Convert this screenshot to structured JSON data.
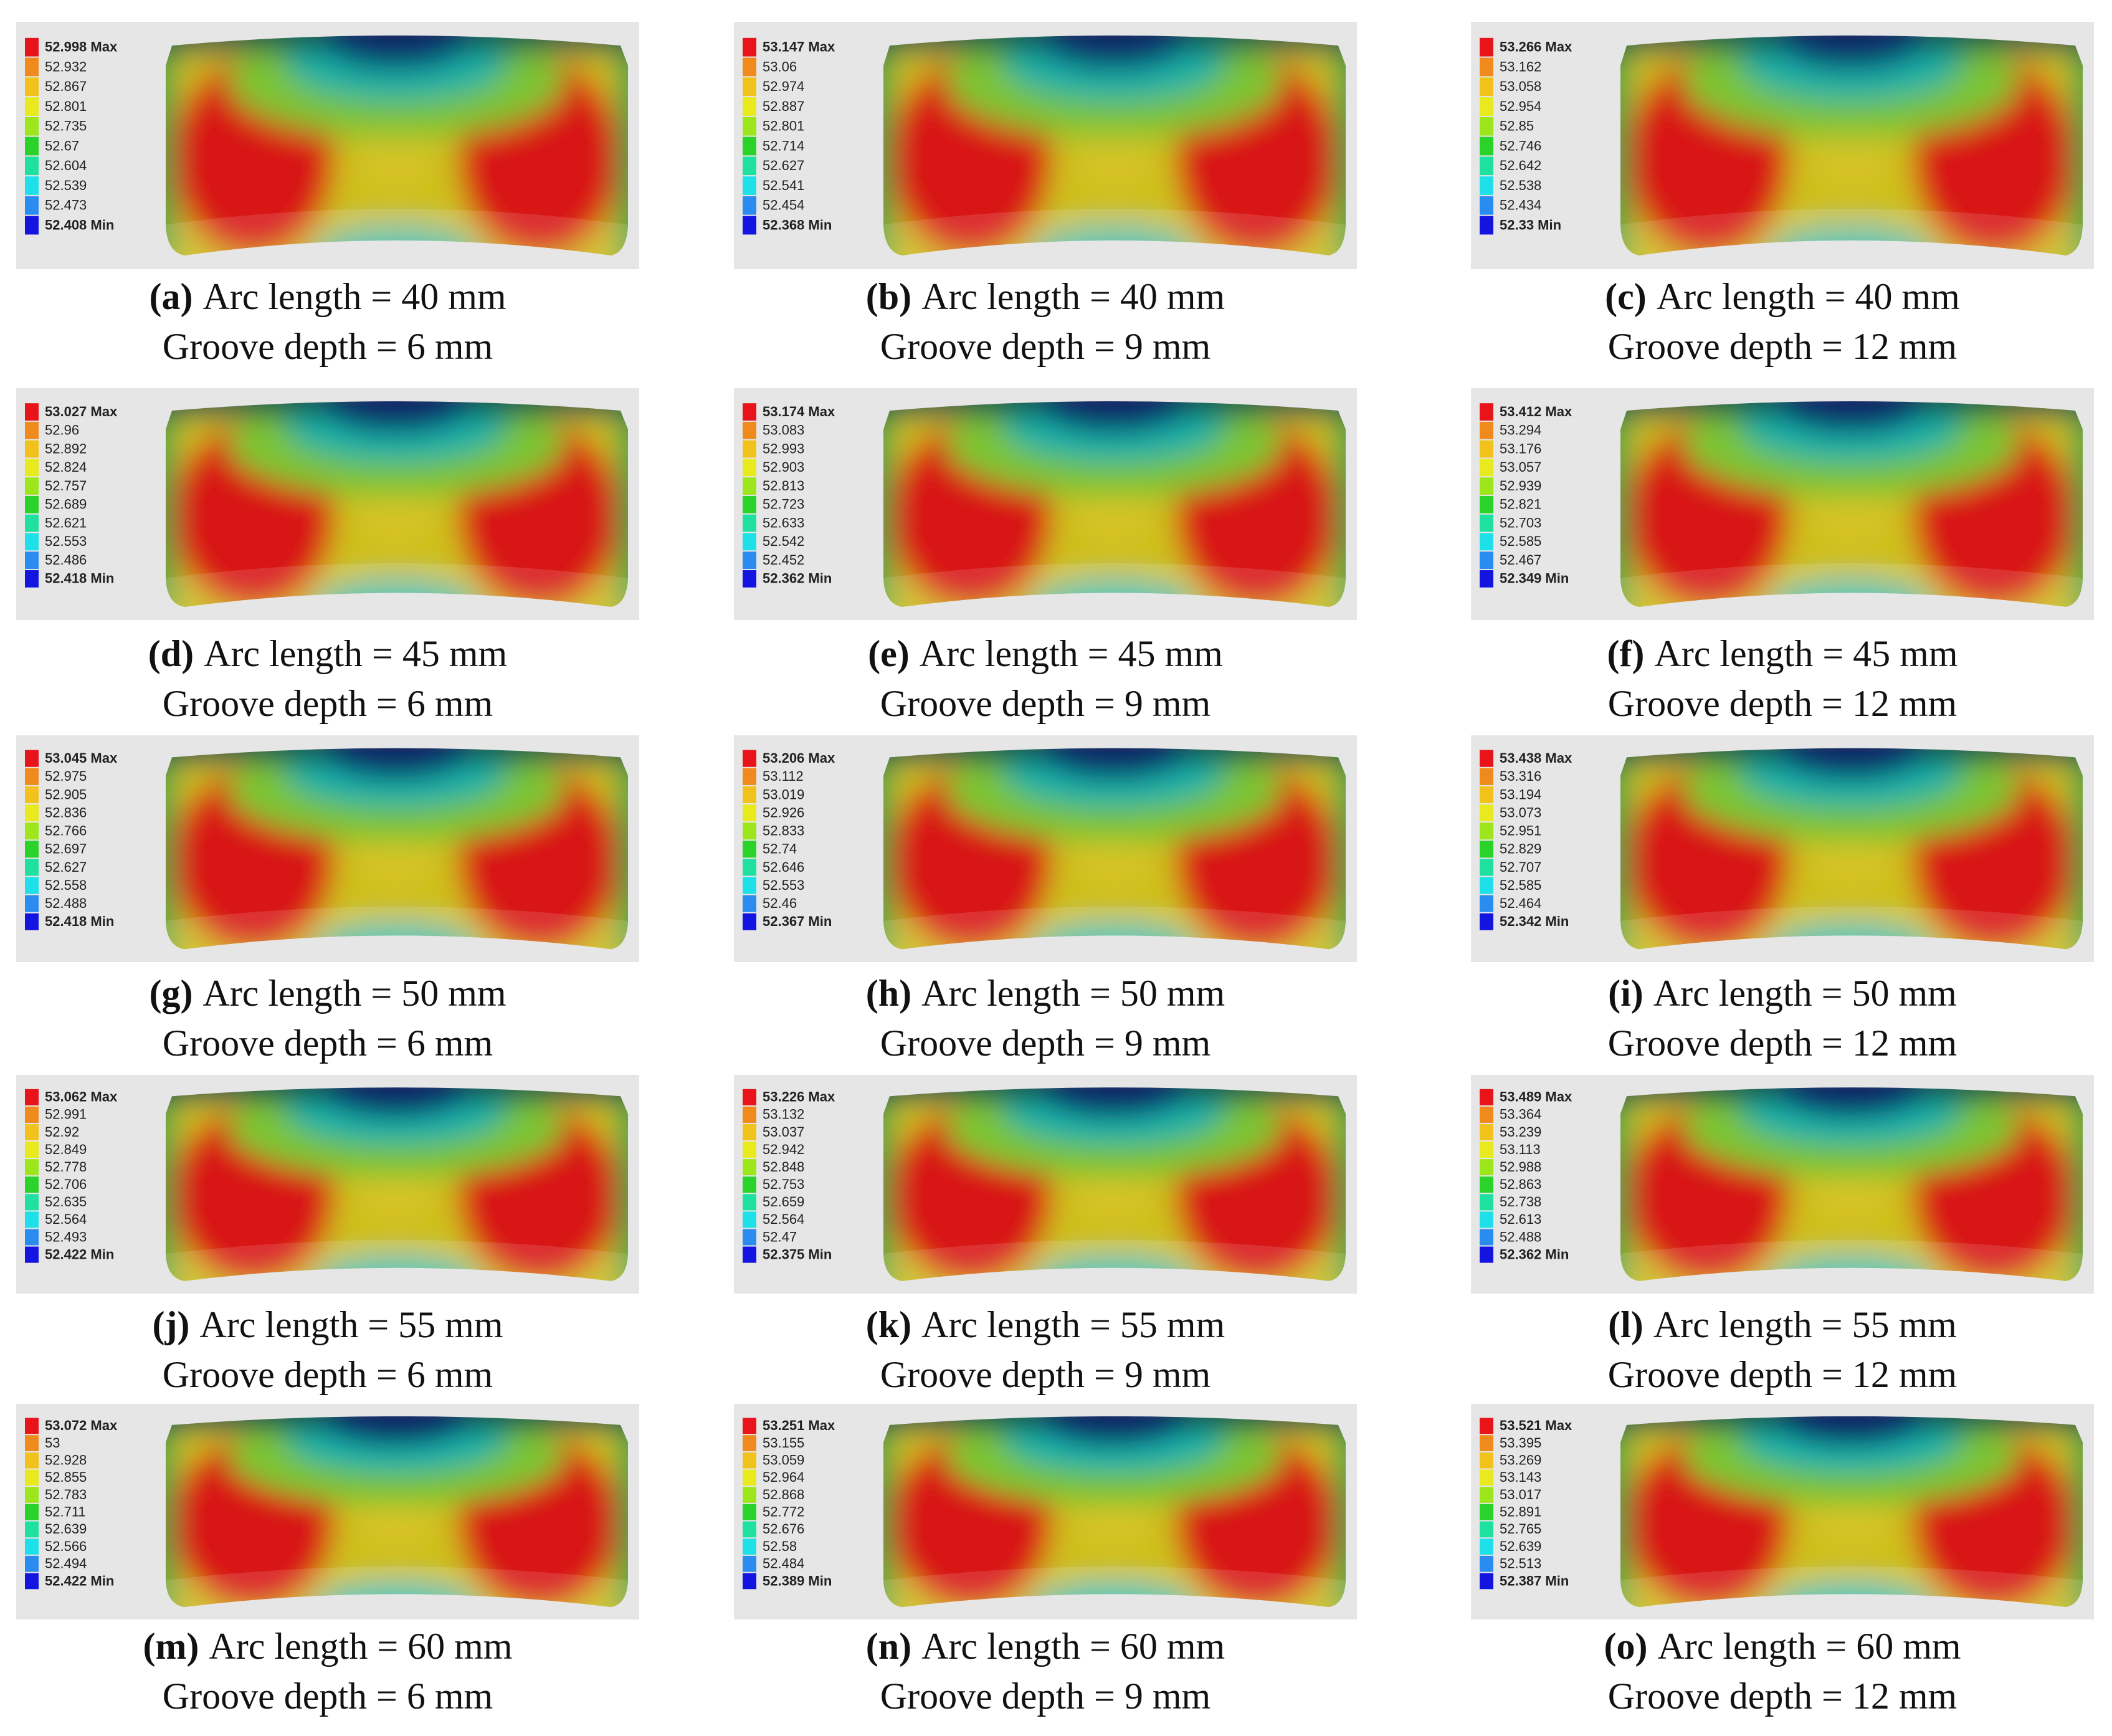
{
  "panels": [
    {
      "label": "(a)",
      "line1": "Arc length = 40 mm",
      "line2": "Groove depth = 6 mm",
      "legend": [
        "52.998 Max",
        "52.932",
        "52.867",
        "52.801",
        "52.735",
        "52.67",
        "52.604",
        "52.539",
        "52.473",
        "52.408 Min"
      ]
    },
    {
      "label": "(b)",
      "line1": "Arc length = 40 mm",
      "line2": "Groove depth = 9 mm",
      "legend": [
        "53.147 Max",
        "53.06",
        "52.974",
        "52.887",
        "52.801",
        "52.714",
        "52.627",
        "52.541",
        "52.454",
        "52.368 Min"
      ]
    },
    {
      "label": "(c)",
      "line1": "Arc length = 40 mm",
      "line2": "Groove depth = 12 mm",
      "legend": [
        "53.266 Max",
        "53.162",
        "53.058",
        "52.954",
        "52.85",
        "52.746",
        "52.642",
        "52.538",
        "52.434",
        "52.33 Min"
      ]
    },
    {
      "label": "(d)",
      "line1": "Arc length = 45 mm",
      "line2": "Groove depth = 6 mm",
      "legend": [
        "53.027 Max",
        "52.96",
        "52.892",
        "52.824",
        "52.757",
        "52.689",
        "52.621",
        "52.553",
        "52.486",
        "52.418 Min"
      ]
    },
    {
      "label": "(e)",
      "line1": "Arc length = 45 mm",
      "line2": "Groove depth = 9 mm",
      "legend": [
        "53.174 Max",
        "53.083",
        "52.993",
        "52.903",
        "52.813",
        "52.723",
        "52.633",
        "52.542",
        "52.452",
        "52.362 Min"
      ]
    },
    {
      "label": "(f)",
      "line1": "Arc length = 45 mm",
      "line2": "Groove depth = 12 mm",
      "legend": [
        "53.412 Max",
        "53.294",
        "53.176",
        "53.057",
        "52.939",
        "52.821",
        "52.703",
        "52.585",
        "52.467",
        "52.349 Min"
      ]
    },
    {
      "label": "(g)",
      "line1": "Arc length = 50 mm",
      "line2": "Groove depth = 6 mm",
      "legend": [
        "53.045 Max",
        "52.975",
        "52.905",
        "52.836",
        "52.766",
        "52.697",
        "52.627",
        "52.558",
        "52.488",
        "52.418 Min"
      ]
    },
    {
      "label": "(h)",
      "line1": "Arc length = 50 mm",
      "line2": "Groove depth = 9 mm",
      "legend": [
        "53.206 Max",
        "53.112",
        "53.019",
        "52.926",
        "52.833",
        "52.74",
        "52.646",
        "52.553",
        "52.46",
        "52.367 Min"
      ]
    },
    {
      "label": "(i)",
      "line1": "Arc length = 50 mm",
      "line2": "Groove depth = 12 mm",
      "legend": [
        "53.438 Max",
        "53.316",
        "53.194",
        "53.073",
        "52.951",
        "52.829",
        "52.707",
        "52.585",
        "52.464",
        "52.342 Min"
      ]
    },
    {
      "label": "(j)",
      "line1": "Arc length = 55 mm",
      "line2": "Groove depth = 6 mm",
      "legend": [
        "53.062 Max",
        "52.991",
        "52.92",
        "52.849",
        "52.778",
        "52.706",
        "52.635",
        "52.564",
        "52.493",
        "52.422 Min"
      ]
    },
    {
      "label": "(k)",
      "line1": "Arc length = 55 mm",
      "line2": "Groove depth = 9 mm",
      "legend": [
        "53.226 Max",
        "53.132",
        "53.037",
        "52.942",
        "52.848",
        "52.753",
        "52.659",
        "52.564",
        "52.47",
        "52.375 Min"
      ]
    },
    {
      "label": "(l)",
      "line1": "Arc length = 55 mm",
      "line2": "Groove depth = 12 mm",
      "legend": [
        "53.489 Max",
        "53.364",
        "53.239",
        "53.113",
        "52.988",
        "52.863",
        "52.738",
        "52.613",
        "52.488",
        "52.362 Min"
      ]
    },
    {
      "label": "(m)",
      "line1": "Arc length = 60 mm",
      "line2": "Groove depth = 6 mm",
      "legend": [
        "53.072 Max",
        "53",
        "52.928",
        "52.855",
        "52.783",
        "52.711",
        "52.639",
        "52.566",
        "52.494",
        "52.422 Min"
      ]
    },
    {
      "label": "(n)",
      "line1": "Arc length = 60 mm",
      "line2": "Groove depth = 9 mm",
      "legend": [
        "53.251 Max",
        "53.155",
        "53.059",
        "52.964",
        "52.868",
        "52.772",
        "52.676",
        "52.58",
        "52.484",
        "52.389 Min"
      ]
    },
    {
      "label": "(o)",
      "line1": "Arc length = 60 mm",
      "line2": "Groove depth = 12 mm",
      "legend": [
        "53.521 Max",
        "53.395",
        "53.269",
        "53.143",
        "53.017",
        "52.891",
        "52.765",
        "52.639",
        "52.513",
        "52.387 Min"
      ]
    }
  ]
}
